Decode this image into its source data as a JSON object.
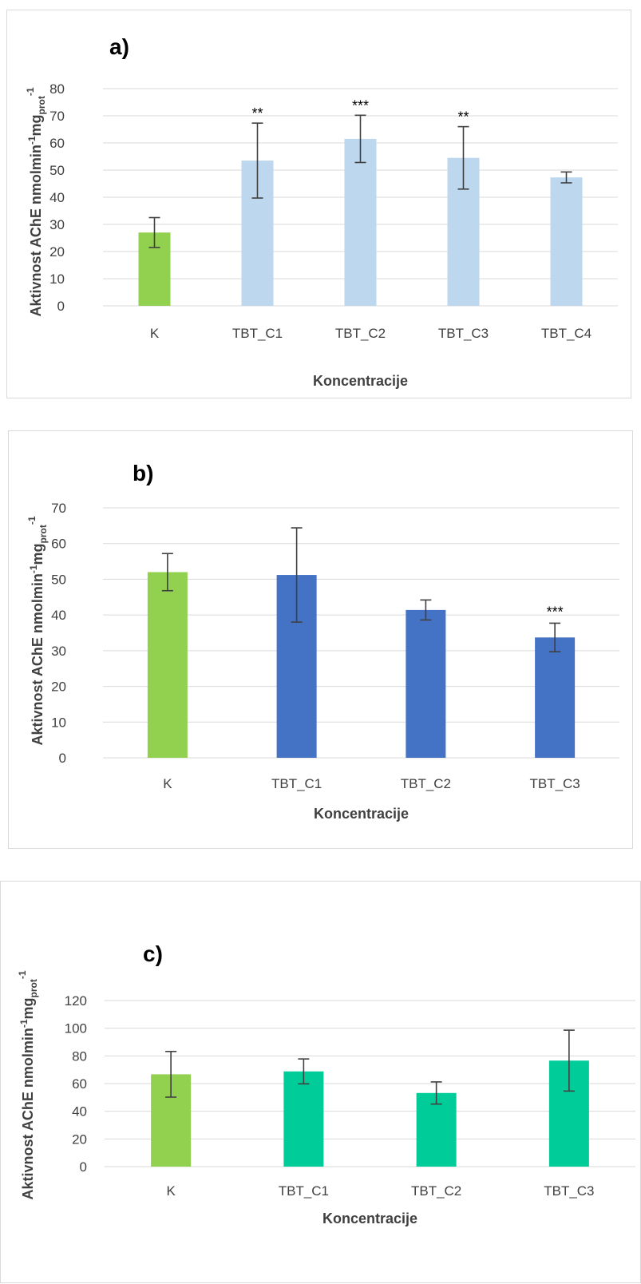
{
  "chart_data": [
    {
      "type": "bar",
      "panel_label": "a)",
      "categories": [
        "K",
        "TBT_C1",
        "TBT_C2",
        "TBT_C3",
        "TBT_C4"
      ],
      "values": [
        27,
        53.5,
        61.5,
        54.5,
        47.3
      ],
      "errors": [
        5.5,
        13.8,
        8.7,
        11.5,
        2
      ],
      "significance": [
        "",
        "**",
        "***",
        "**",
        ""
      ],
      "colors": [
        "#92d050",
        "#bdd7ee",
        "#bdd7ee",
        "#bdd7ee",
        "#bdd7ee"
      ],
      "xlabel": "Koncentracije",
      "ylabel": {
        "main": "Aktivnost AChE nmolmin",
        "sup1": "-1",
        "mid": "mg",
        "sub": "prot",
        "sup2": "-1"
      },
      "ylim": [
        0,
        80
      ],
      "yticks": [
        0,
        10,
        20,
        30,
        40,
        50,
        60,
        70,
        80
      ],
      "grid": true
    },
    {
      "type": "bar",
      "panel_label": "b)",
      "categories": [
        "K",
        "TBT_C1",
        "TBT_C2",
        "TBT_C3"
      ],
      "values": [
        52,
        51.2,
        41.4,
        33.7
      ],
      "errors": [
        5.2,
        13.2,
        2.8,
        4
      ],
      "significance": [
        "",
        "",
        "",
        "***"
      ],
      "colors": [
        "#92d050",
        "#4472c4",
        "#4472c4",
        "#4472c4"
      ],
      "xlabel": "Koncentracije",
      "ylabel": {
        "main": "Aktivnost  AChE nmolmin",
        "sup1": "-1",
        "mid": "mg",
        "sub": "prot",
        "sup2": "-1"
      },
      "ylim": [
        0,
        70
      ],
      "yticks": [
        0,
        10,
        20,
        30,
        40,
        50,
        60,
        70
      ],
      "grid": true
    },
    {
      "type": "bar",
      "panel_label": "c)",
      "categories": [
        "K",
        "TBT_C1",
        "TBT_C2",
        "TBT_C3"
      ],
      "values": [
        66.7,
        68.8,
        53.2,
        76.6
      ],
      "errors": [
        16.5,
        9,
        8,
        22
      ],
      "significance": [
        "",
        "",
        "",
        ""
      ],
      "colors": [
        "#92d050",
        "#00cc99",
        "#00cc99",
        "#00cc99"
      ],
      "xlabel": "Koncentracije",
      "ylabel": {
        "main": "Aktivnost AChE nmolmin",
        "sup1": "-1",
        "mid": "mg",
        "sub": "prot",
        "sup2": "-1"
      },
      "ylim": [
        0,
        120
      ],
      "yticks": [
        0,
        20,
        40,
        60,
        80,
        100,
        120
      ],
      "grid": true
    }
  ]
}
